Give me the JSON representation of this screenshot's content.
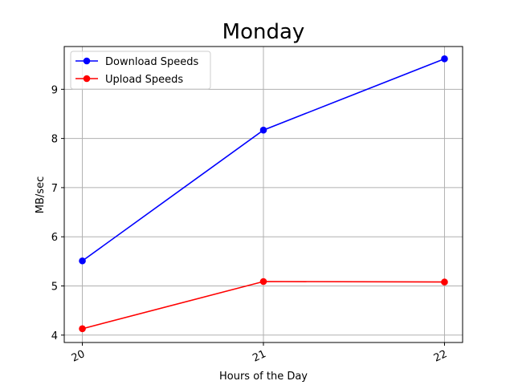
{
  "chart_data": {
    "type": "line",
    "title": "Monday",
    "xlabel": "Hours of the Day",
    "ylabel": "MB/sec",
    "x": [
      20,
      21,
      22
    ],
    "x_tick_labels": [
      "20",
      "21",
      "22"
    ],
    "y_ticks": [
      4,
      5,
      6,
      7,
      8,
      9
    ],
    "y_tick_labels": [
      "4",
      "5",
      "6",
      "7",
      "8",
      "9"
    ],
    "xlim": [
      19.9,
      22.1
    ],
    "ylim": [
      3.85,
      9.87
    ],
    "grid": true,
    "legend_position": "top-left",
    "series": [
      {
        "name": "Download Speeds",
        "color": "#0000ff",
        "values": [
          5.51,
          8.17,
          9.62
        ]
      },
      {
        "name": "Upload Speeds",
        "color": "#ff0000",
        "values": [
          4.13,
          5.09,
          5.08
        ]
      }
    ]
  }
}
